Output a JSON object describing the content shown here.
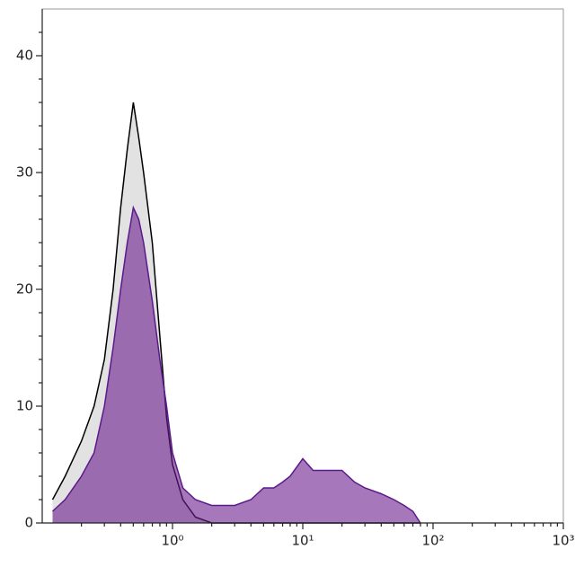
{
  "chart_data": {
    "type": "area",
    "log_x": true,
    "x": [
      0.12,
      0.15,
      0.2,
      0.25,
      0.3,
      0.35,
      0.4,
      0.45,
      0.5,
      0.55,
      0.6,
      0.7,
      0.8,
      0.9,
      1.0,
      1.2,
      1.5,
      2,
      2.5,
      3,
      4,
      5,
      6,
      7,
      8,
      10,
      12,
      15,
      20,
      25,
      30,
      40,
      50,
      60,
      70,
      80
    ],
    "series": [
      {
        "color": "#000000",
        "fill": "#e2e2e2",
        "opacity": 1,
        "values": [
          2,
          4,
          7,
          10,
          14,
          20,
          27,
          32,
          36,
          33,
          30,
          24,
          16,
          9,
          5,
          2,
          0.5,
          0,
          0,
          0,
          0,
          0,
          0,
          0,
          0,
          0,
          0,
          0,
          0,
          0,
          0,
          0,
          0,
          0,
          0,
          0
        ]
      },
      {
        "color": "#5b1a8a",
        "fill": "#6a1d8c",
        "opacity": 0.6,
        "values": [
          1,
          2,
          4,
          6,
          10,
          15,
          20,
          24,
          27,
          26,
          24,
          19,
          14,
          10,
          6,
          3,
          2,
          1.5,
          1.5,
          1.5,
          2,
          3,
          3,
          3.5,
          4,
          5.5,
          4.5,
          4.5,
          4.5,
          3.5,
          3,
          2.5,
          2,
          1.5,
          1,
          0
        ]
      }
    ],
    "xlim": [
      0.1,
      1000
    ],
    "xticks": [
      {
        "value": 1,
        "label": "10⁰"
      },
      {
        "value": 10,
        "label": "10¹"
      },
      {
        "value": 100,
        "label": "10²"
      },
      {
        "value": 1000,
        "label": "10³"
      }
    ],
    "xminorticks": [
      0.2,
      0.3,
      0.4,
      0.5,
      0.6,
      0.7,
      0.8,
      0.9,
      2,
      3,
      4,
      5,
      6,
      7,
      8,
      9,
      20,
      30,
      40,
      50,
      60,
      70,
      80,
      90,
      200,
      300,
      400,
      500,
      600,
      700,
      800,
      900
    ],
    "ylim": [
      0,
      44
    ],
    "yticks": [
      0,
      10,
      20,
      30,
      40
    ],
    "yminorticks": [
      2,
      4,
      6,
      8,
      12,
      14,
      16,
      18,
      22,
      24,
      26,
      28,
      32,
      34,
      36,
      38,
      42
    ]
  }
}
